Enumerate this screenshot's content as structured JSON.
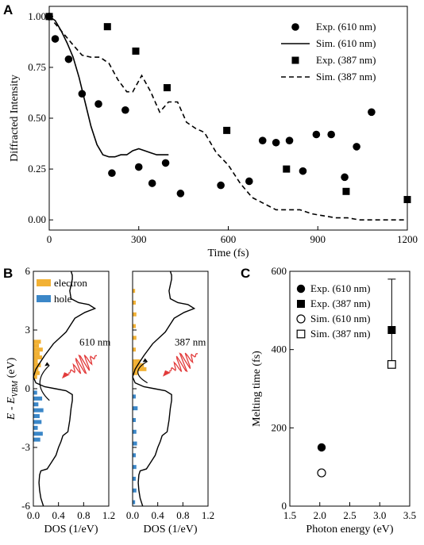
{
  "colors": {
    "electron": "#f2b134",
    "hole": "#3b87c8",
    "wave": "#e23b3b",
    "line": "#000000"
  },
  "chart_data": [
    {
      "panel": "A",
      "type": "scatter",
      "xlabel": "Time (fs)",
      "ylabel": "Diffracted Intensity",
      "xlim": [
        0,
        1200
      ],
      "ylim": [
        -0.05,
        1.05
      ],
      "xticks": [
        0,
        300,
        600,
        900,
        1200
      ],
      "yticks": [
        0.0,
        0.25,
        0.5,
        0.75,
        1.0
      ],
      "xtick_labels": [
        "0",
        "300",
        "600",
        "900",
        "1200"
      ],
      "ytick_labels": [
        "0.00",
        "0.25",
        "0.50",
        "0.75",
        "1.00"
      ],
      "legend_position": "top-right",
      "series": [
        {
          "name": "Exp. (610 nm)",
          "kind": "scatter",
          "marker": "circle",
          "x": [
            0,
            20,
            65,
            110,
            165,
            210,
            255,
            300,
            345,
            390,
            440,
            575,
            670,
            715,
            760,
            805,
            850,
            895,
            945,
            990,
            1030,
            1080
          ],
          "y": [
            1.0,
            0.89,
            0.79,
            0.62,
            0.57,
            0.23,
            0.54,
            0.26,
            0.18,
            0.28,
            0.13,
            0.17,
            0.19,
            0.39,
            0.38,
            0.39,
            0.24,
            0.42,
            0.42,
            0.21,
            0.36,
            0.53
          ]
        },
        {
          "name": "Sim. (610 nm)",
          "kind": "line",
          "dash": "solid",
          "x": [
            0,
            20,
            40,
            60,
            80,
            100,
            120,
            140,
            160,
            180,
            200,
            220,
            240,
            260,
            280,
            300,
            320,
            340,
            360,
            380,
            400
          ],
          "y": [
            1.0,
            0.98,
            0.93,
            0.87,
            0.8,
            0.7,
            0.58,
            0.46,
            0.37,
            0.32,
            0.31,
            0.31,
            0.32,
            0.32,
            0.34,
            0.35,
            0.34,
            0.33,
            0.32,
            0.32,
            0.32
          ]
        },
        {
          "name": "Exp. (387 nm)",
          "kind": "scatter",
          "marker": "square",
          "x": [
            0,
            195,
            290,
            395,
            595,
            795,
            995,
            1200
          ],
          "y": [
            1.0,
            0.95,
            0.83,
            0.65,
            0.44,
            0.25,
            0.14,
            0.1
          ]
        },
        {
          "name": "Sim. (387 nm)",
          "kind": "line",
          "dash": "dashed",
          "x": [
            0,
            40,
            80,
            110,
            140,
            170,
            200,
            230,
            260,
            280,
            310,
            340,
            370,
            400,
            430,
            460,
            490,
            520,
            560,
            600,
            640,
            680,
            720,
            760,
            800,
            840,
            880,
            920,
            960,
            1000,
            1040,
            1080,
            1120,
            1160,
            1200
          ],
          "y": [
            1.0,
            0.93,
            0.86,
            0.81,
            0.8,
            0.8,
            0.77,
            0.69,
            0.63,
            0.63,
            0.71,
            0.63,
            0.53,
            0.58,
            0.58,
            0.48,
            0.45,
            0.43,
            0.33,
            0.27,
            0.18,
            0.11,
            0.08,
            0.05,
            0.05,
            0.05,
            0.03,
            0.02,
            0.01,
            0.01,
            0.0,
            0.0,
            0.0,
            0.0,
            0.0
          ]
        }
      ]
    },
    {
      "panel": "B",
      "type": "line",
      "subplots": [
        {
          "xlabel": "DOS (1/eV)",
          "ylabel": "E - E_VBM (eV)",
          "xlim": [
            0,
            1.2
          ],
          "ylim": [
            -6,
            6
          ],
          "xticks": [
            0.0,
            0.4,
            0.8,
            1.2
          ],
          "xtick_labels": [
            "0.0",
            "0.4",
            "0.8",
            "1.2"
          ],
          "yticks": [
            -6,
            -3,
            0,
            3,
            6
          ],
          "ytick_labels": [
            "-6",
            "-3",
            "0",
            "3",
            "6"
          ],
          "annotation": "610 nm",
          "legend": [
            "electron",
            "hole"
          ],
          "dos_curve": {
            "x": [
              0.16,
              0.12,
              0.1,
              0.09,
              0.1,
              0.12,
              0.22,
              0.28,
              0.36,
              0.4,
              0.44,
              0.47,
              0.55,
              0.58,
              0.6,
              0.62,
              0.62,
              0.52,
              0.35,
              0.18,
              0.04,
              0.0,
              0.04,
              0.1,
              0.18,
              0.32,
              0.52,
              0.6,
              0.66,
              0.82,
              0.98,
              0.88,
              0.72,
              0.6,
              0.58,
              0.6,
              0.62,
              0.62,
              0.6
            ],
            "y": [
              -6.0,
              -5.6,
              -5.2,
              -4.8,
              -4.4,
              -4.2,
              -4.1,
              -3.8,
              -3.4,
              -3.0,
              -2.7,
              -2.4,
              -2.2,
              -1.6,
              -1.0,
              -0.6,
              -0.3,
              -0.1,
              0.0,
              0.1,
              0.3,
              0.6,
              1.0,
              1.3,
              1.7,
              2.3,
              2.9,
              3.3,
              3.6,
              3.9,
              4.1,
              4.3,
              4.4,
              4.6,
              5.0,
              5.3,
              5.6,
              5.8,
              6.0
            ]
          },
          "electron": {
            "y": [
              0.6,
              0.8,
              1.0,
              1.2,
              1.4,
              1.6,
              1.8,
              2.0,
              2.2,
              2.4
            ],
            "x": [
              0.06,
              0.1,
              0.08,
              0.12,
              0.07,
              0.14,
              0.1,
              0.15,
              0.09,
              0.12
            ]
          },
          "hole": {
            "y": [
              -0.2,
              -0.5,
              -0.8,
              -1.1,
              -1.4,
              -1.7,
              -2.0,
              -2.3,
              -2.6
            ],
            "x": [
              0.06,
              0.14,
              0.08,
              0.16,
              0.1,
              0.13,
              0.07,
              0.15,
              0.11
            ]
          }
        },
        {
          "xlabel": "DOS (1/eV)",
          "xlim": [
            0,
            1.2
          ],
          "ylim": [
            -6,
            6
          ],
          "xticks": [
            0.0,
            0.4,
            0.8,
            1.2
          ],
          "xtick_labels": [
            "0.0",
            "0.4",
            "0.8",
            "1.2"
          ],
          "annotation": "387 nm",
          "dos_curve": {
            "x": [
              0.16,
              0.12,
              0.1,
              0.09,
              0.1,
              0.12,
              0.22,
              0.28,
              0.36,
              0.4,
              0.44,
              0.47,
              0.55,
              0.58,
              0.6,
              0.62,
              0.62,
              0.52,
              0.35,
              0.18,
              0.04,
              0.0,
              0.04,
              0.1,
              0.18,
              0.32,
              0.52,
              0.6,
              0.66,
              0.82,
              0.98,
              0.88,
              0.72,
              0.6,
              0.58,
              0.6,
              0.62,
              0.62,
              0.6
            ],
            "y": [
              -6.0,
              -5.6,
              -5.2,
              -4.8,
              -4.4,
              -4.2,
              -4.1,
              -3.8,
              -3.4,
              -3.0,
              -2.7,
              -2.4,
              -2.2,
              -1.6,
              -1.0,
              -0.6,
              -0.3,
              -0.1,
              0.0,
              0.1,
              0.3,
              0.6,
              1.0,
              1.3,
              1.7,
              2.3,
              2.9,
              3.3,
              3.6,
              3.9,
              4.1,
              4.3,
              4.4,
              4.6,
              5.0,
              5.3,
              5.6,
              5.8,
              6.0
            ]
          },
          "electron": {
            "y": [
              0.8,
              1.0,
              1.2,
              1.4,
              2.0,
              2.6,
              3.2,
              3.8,
              4.4,
              5.0
            ],
            "x": [
              0.08,
              0.22,
              0.18,
              0.12,
              0.05,
              0.06,
              0.05,
              0.06,
              0.05,
              0.04
            ]
          },
          "hole": {
            "y": [
              -0.4,
              -1.0,
              -1.6,
              -2.2,
              -2.8,
              -3.4,
              -4.0,
              -4.6,
              -5.2,
              -5.8
            ],
            "x": [
              0.05,
              0.08,
              0.05,
              0.06,
              0.07,
              0.05,
              0.06,
              0.05,
              0.06,
              0.04
            ]
          }
        }
      ]
    },
    {
      "panel": "C",
      "type": "scatter",
      "xlabel": "Photon energy (eV)",
      "ylabel": "Melting time (fs)",
      "xlim": [
        1.5,
        3.5
      ],
      "ylim": [
        0,
        600
      ],
      "xticks": [
        1.5,
        2.0,
        2.5,
        3.0,
        3.5
      ],
      "xtick_labels": [
        "1.5",
        "2.0",
        "2.5",
        "3.0",
        "3.5"
      ],
      "yticks": [
        0,
        200,
        400,
        600
      ],
      "ytick_labels": [
        "0",
        "200",
        "400",
        "600"
      ],
      "legend_position": "top-left",
      "series": [
        {
          "name": "Exp. (610 nm)",
          "marker": "circle-filled",
          "x": [
            2.03
          ],
          "y": [
            150
          ]
        },
        {
          "name": "Exp. (387 nm)",
          "marker": "square-filled",
          "x": [
            3.2
          ],
          "y": [
            450
          ],
          "error_upper": [
            580
          ],
          "error_lower": [
            360
          ]
        },
        {
          "name": "Sim. (610 nm)",
          "marker": "circle-open",
          "x": [
            2.03
          ],
          "y": [
            85
          ]
        },
        {
          "name": "Sim. (387 nm)",
          "marker": "square-open",
          "x": [
            3.2
          ],
          "y": [
            362
          ]
        }
      ]
    }
  ]
}
